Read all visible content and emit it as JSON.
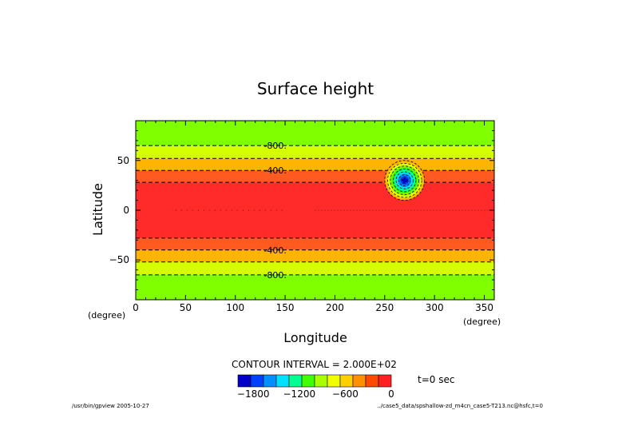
{
  "chart_data": {
    "type": "heatmap",
    "title": "Surface height",
    "xlabel": "Longitude",
    "ylabel": "Latitude",
    "x_unit": "(degree)",
    "y_unit": "(degree)",
    "xlim": [
      0,
      360
    ],
    "ylim": [
      -90,
      90
    ],
    "x_ticks": [
      0,
      50,
      100,
      150,
      200,
      250,
      300,
      350
    ],
    "y_ticks": [
      50,
      0,
      -50
    ],
    "y_tick_labels": [
      "50",
      "0",
      "−50"
    ],
    "grid": false,
    "bands": [
      {
        "lat_from": 65,
        "lat_to": 90,
        "color": "#7fff00"
      },
      {
        "lat_from": 52,
        "lat_to": 65,
        "color": "#d4ff00"
      },
      {
        "lat_from": 40,
        "lat_to": 52,
        "color": "#ffb400"
      },
      {
        "lat_from": 28,
        "lat_to": 40,
        "color": "#ff5a1f"
      },
      {
        "lat_from": -28,
        "lat_to": 28,
        "color": "#ff2a2a"
      },
      {
        "lat_from": -40,
        "lat_to": -28,
        "color": "#ff5a1f"
      },
      {
        "lat_from": -52,
        "lat_to": -40,
        "color": "#ffb400"
      },
      {
        "lat_from": -65,
        "lat_to": -52,
        "color": "#d4ff00"
      },
      {
        "lat_from": -90,
        "lat_to": -65,
        "color": "#7fff00"
      }
    ],
    "contour_lines_lat": [
      65,
      52,
      40,
      28,
      -28,
      -40,
      -52,
      -65
    ],
    "contour_labels": [
      {
        "text": "-800.",
        "lon": 140,
        "lat": 65
      },
      {
        "text": "-400.",
        "lon": 140,
        "lat": 40
      },
      {
        "text": "-400.",
        "lon": 140,
        "lat": -40
      },
      {
        "text": "-800.",
        "lon": 140,
        "lat": -65
      }
    ],
    "feature": {
      "lon_center": 270,
      "lat_center": 30,
      "radius_deg": 20,
      "min_level": -2000
    },
    "contour_interval_label": "CONTOUR INTERVAL = 2.000E+02",
    "colorbar": {
      "colors": [
        "#0000c8",
        "#0040ff",
        "#0090ff",
        "#00e0ff",
        "#00ff90",
        "#40ff00",
        "#a8ff00",
        "#f0ff00",
        "#ffd000",
        "#ff9000",
        "#ff4a00",
        "#ff2020"
      ],
      "levels": [
        -2000,
        -1800,
        -1600,
        -1400,
        -1200,
        -1000,
        -800,
        -600,
        -400,
        -200,
        0
      ],
      "tick_labels": [
        "−1800",
        "−1200",
        "−600",
        "0"
      ]
    },
    "time_label": "t=0 sec"
  },
  "footer": {
    "left": "/usr/bin/gpview  2005-10-27",
    "right": "../case5_data/spshallow-zd_m4cn_case5-T213.nc@hsfc,t=0"
  }
}
